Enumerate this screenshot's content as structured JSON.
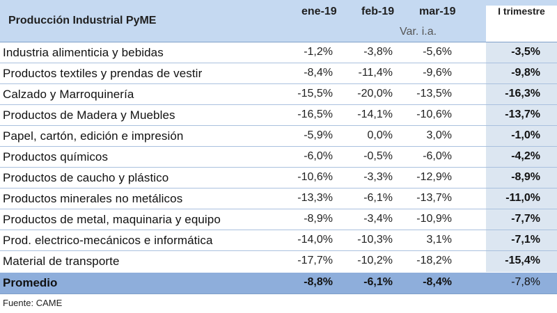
{
  "table": {
    "title": "Producción Industrial PyME",
    "months": [
      "ene-19",
      "feb-19",
      "mar-19"
    ],
    "subheader": "Var. i.a.",
    "quarter_label": "I trimestre",
    "rows": [
      {
        "name": "Industria alimenticia y bebidas",
        "values": [
          "-1,2%",
          "-3,8%",
          "-5,6%"
        ],
        "quarter": "-3,5%"
      },
      {
        "name": "Productos textiles y prendas de vestir",
        "values": [
          "-8,4%",
          "-11,4%",
          "-9,6%"
        ],
        "quarter": "-9,8%"
      },
      {
        "name": "Calzado y Marroquinería",
        "values": [
          "-15,5%",
          "-20,0%",
          "-13,5%"
        ],
        "quarter": "-16,3%"
      },
      {
        "name": "Productos de Madera y Muebles",
        "values": [
          "-16,5%",
          "-14,1%",
          "-10,6%"
        ],
        "quarter": "-13,7%"
      },
      {
        "name": "Papel, cartón, edición e impresión",
        "values": [
          "-5,9%",
          "0,0%",
          "3,0%"
        ],
        "quarter": "-1,0%"
      },
      {
        "name": "Productos químicos",
        "values": [
          "-6,0%",
          "-0,5%",
          "-6,0%"
        ],
        "quarter": "-4,2%"
      },
      {
        "name": "Productos de caucho y plástico",
        "values": [
          "-10,6%",
          "-3,3%",
          "-12,9%"
        ],
        "quarter": "-8,9%"
      },
      {
        "name": "Productos minerales no metálicos",
        "values": [
          "-13,3%",
          "-6,1%",
          "-13,7%"
        ],
        "quarter": "-11,0%"
      },
      {
        "name": "Productos de metal, maquinaria y equipo",
        "values": [
          "-8,9%",
          "-3,4%",
          "-10,9%"
        ],
        "quarter": "-7,7%"
      },
      {
        "name": "Prod. electrico-mecánicos e informática",
        "values": [
          "-14,0%",
          "-10,3%",
          "3,1%"
        ],
        "quarter": "-7,1%"
      },
      {
        "name": "Material de transporte",
        "values": [
          "-17,7%",
          "-10,2%",
          "-18,2%"
        ],
        "quarter": "-15,4%"
      }
    ],
    "average": {
      "name": "Promedio",
      "values": [
        "-8,8%",
        "-6,1%",
        "-8,4%"
      ],
      "quarter": "-7,8%"
    },
    "source": "Fuente: CAME"
  }
}
